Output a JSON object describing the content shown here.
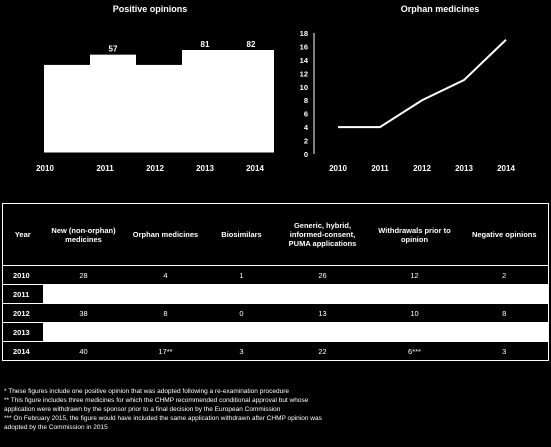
{
  "chart_data": [
    {
      "type": "bar",
      "title": "Positive opinions",
      "categories": [
        "2010",
        "2011",
        "2012",
        "2013",
        "2014"
      ],
      "values": [
        51,
        57,
        51,
        81,
        82
      ],
      "labels": [
        "",
        "57",
        "",
        "81",
        "82"
      ]
    },
    {
      "type": "line",
      "title": "Orphan medicines",
      "x": [
        "2010",
        "2011",
        "2012",
        "2013",
        "2014"
      ],
      "y": [
        4,
        4,
        8,
        11,
        17
      ],
      "yticks": [
        "0",
        "2",
        "4",
        "6",
        "8",
        "10",
        "12",
        "14",
        "16",
        "18"
      ],
      "ylim": [
        0,
        18
      ]
    }
  ],
  "table": {
    "headers": [
      "Year",
      "New (non-orphan) medicines",
      "Orphan medicines",
      "Biosimilars",
      "Generic, hybrid, informed-consent, PUMA applications",
      "Withdrawals prior to opinion",
      "Negative opinions"
    ],
    "rows": [
      {
        "year": "2010",
        "cells": [
          "28",
          "4",
          "1",
          "26",
          "12",
          "2"
        ]
      },
      {
        "year": "2011",
        "cells": []
      },
      {
        "year": "2012",
        "cells": [
          "38",
          "8",
          "0",
          "13",
          "10",
          "8"
        ]
      },
      {
        "year": "2013",
        "cells": []
      },
      {
        "year": "2014",
        "cells": [
          "40",
          "17**",
          "3",
          "22",
          "6***",
          "3"
        ]
      }
    ]
  },
  "notes": [
    "* These figures include one positive opinion that was adopted following a re-examination procedure",
    "** This figure includes three medicines for which the CHMP recommended conditional approval but whose",
    "application were withdrawn by the sponsor prior to a final decision by the European Commission",
    "*** On February 2015, the figure would have included the same application withdrawn after CHMP opinion was",
    "adopted by the Commission in 2015"
  ]
}
